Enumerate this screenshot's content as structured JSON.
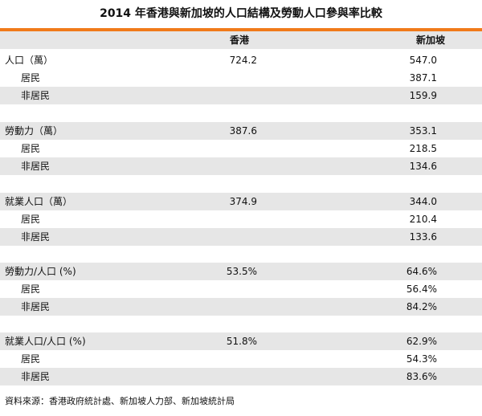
{
  "title": "2014 年香港與新加坡的人口結構及勞動人口參與率比較",
  "accent_color": "#f07a1a",
  "row_shade_color": "#e6e6e6",
  "columns": [
    "",
    "香港",
    "新加坡"
  ],
  "rows": [
    {
      "label": "人口（萬）",
      "hk": "724.2",
      "sg": "547.0",
      "indent": false,
      "shaded": false
    },
    {
      "label": "居民",
      "hk": "",
      "sg": "387.1",
      "indent": true,
      "shaded": false
    },
    {
      "label": "非居民",
      "hk": "",
      "sg": "159.9",
      "indent": true,
      "shaded": true
    },
    {
      "label": "勞動力（萬）",
      "hk": "387.6",
      "sg": "353.1",
      "indent": false,
      "shaded": true
    },
    {
      "label": "居民",
      "hk": "",
      "sg": "218.5",
      "indent": true,
      "shaded": false
    },
    {
      "label": "非居民",
      "hk": "",
      "sg": "134.6",
      "indent": true,
      "shaded": true
    },
    {
      "label": "就業人口（萬）",
      "hk": "374.9",
      "sg": "344.0",
      "indent": false,
      "shaded": true
    },
    {
      "label": "居民",
      "hk": "",
      "sg": "210.4",
      "indent": true,
      "shaded": false
    },
    {
      "label": "非居民",
      "hk": "",
      "sg": "133.6",
      "indent": true,
      "shaded": true
    },
    {
      "label": "勞動力/人口 (%)",
      "hk": "53.5%",
      "sg": "64.6%",
      "indent": false,
      "shaded": true
    },
    {
      "label": "居民",
      "hk": "",
      "sg": "56.4%",
      "indent": true,
      "shaded": false
    },
    {
      "label": "非居民",
      "hk": "",
      "sg": "84.2%",
      "indent": true,
      "shaded": true
    },
    {
      "label": "就業人口/人口 (%)",
      "hk": "51.8%",
      "sg": "62.9%",
      "indent": false,
      "shaded": true
    },
    {
      "label": "居民",
      "hk": "",
      "sg": "54.3%",
      "indent": true,
      "shaded": false
    },
    {
      "label": "非居民",
      "hk": "",
      "sg": "83.6%",
      "indent": true,
      "shaded": true
    }
  ],
  "source": "資料來源：香港政府統計處、新加坡人力部、新加坡統計局"
}
